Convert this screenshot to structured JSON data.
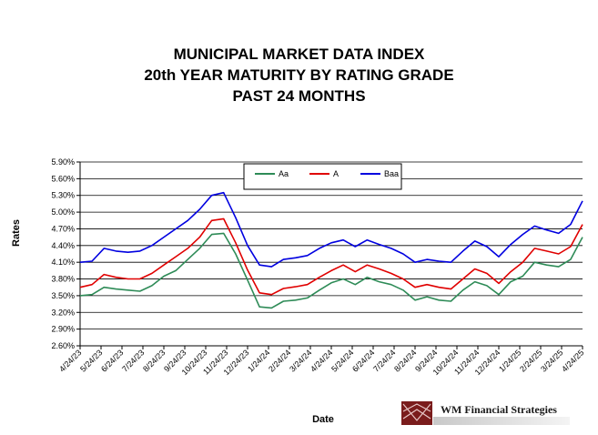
{
  "title_lines": [
    "MUNICIPAL MARKET DATA INDEX",
    "20th YEAR MATURITY BY RATING GRADE",
    "PAST 24 MONTHS"
  ],
  "logo_text": "WM Financial Strategies",
  "chart_data": {
    "type": "line",
    "title": "MUNICIPAL MARKET DATA INDEX 20th YEAR MATURITY BY RATING GRADE PAST 24 MONTHS",
    "xlabel": "Date",
    "ylabel": "Rates",
    "ylim": [
      2.6,
      5.9
    ],
    "yticks": [
      "2.60%",
      "2.90%",
      "3.20%",
      "3.50%",
      "3.80%",
      "4.10%",
      "4.40%",
      "4.70%",
      "5.00%",
      "5.30%",
      "5.60%",
      "5.90%"
    ],
    "xticks": [
      "4/24/23",
      "5/24/23",
      "6/24/23",
      "7/24/23",
      "8/24/23",
      "9/24/23",
      "10/24/23",
      "11/24/23",
      "12/24/23",
      "1/24/24",
      "2/24/24",
      "3/24/24",
      "4/24/24",
      "5/24/24",
      "6/24/24",
      "7/24/24",
      "8/24/24",
      "9/24/24",
      "10/24/24",
      "11/24/24",
      "12/24/24",
      "1/24/25",
      "2/24/25",
      "3/24/25",
      "4/24/25"
    ],
    "grid": true,
    "legend": "top-center",
    "series": [
      {
        "name": "Aa",
        "color": "#2e8b57",
        "values": [
          3.5,
          3.52,
          3.65,
          3.62,
          3.6,
          3.58,
          3.68,
          3.85,
          3.95,
          4.15,
          4.35,
          4.6,
          4.62,
          4.25,
          3.78,
          3.3,
          3.28,
          3.4,
          3.42,
          3.46,
          3.6,
          3.73,
          3.8,
          3.7,
          3.83,
          3.75,
          3.7,
          3.6,
          3.42,
          3.48,
          3.42,
          3.4,
          3.6,
          3.75,
          3.68,
          3.52,
          3.75,
          3.85,
          4.1,
          4.05,
          4.02,
          4.15,
          4.55
        ]
      },
      {
        "name": "A",
        "color": "#e00000",
        "values": [
          3.65,
          3.7,
          3.88,
          3.83,
          3.8,
          3.8,
          3.9,
          4.05,
          4.2,
          4.35,
          4.55,
          4.85,
          4.88,
          4.45,
          3.96,
          3.55,
          3.52,
          3.63,
          3.66,
          3.7,
          3.83,
          3.95,
          4.05,
          3.93,
          4.05,
          3.98,
          3.9,
          3.8,
          3.65,
          3.7,
          3.65,
          3.62,
          3.8,
          3.98,
          3.9,
          3.72,
          3.93,
          4.1,
          4.35,
          4.3,
          4.25,
          4.38,
          4.78
        ]
      },
      {
        "name": "Baa",
        "color": "#0000e0",
        "values": [
          4.1,
          4.12,
          4.35,
          4.3,
          4.28,
          4.3,
          4.4,
          4.55,
          4.7,
          4.85,
          5.05,
          5.3,
          5.35,
          4.9,
          4.4,
          4.05,
          4.02,
          4.15,
          4.18,
          4.22,
          4.35,
          4.45,
          4.5,
          4.38,
          4.5,
          4.42,
          4.35,
          4.25,
          4.1,
          4.15,
          4.12,
          4.1,
          4.3,
          4.48,
          4.38,
          4.2,
          4.42,
          4.6,
          4.75,
          4.68,
          4.62,
          4.78,
          5.2
        ]
      }
    ]
  }
}
